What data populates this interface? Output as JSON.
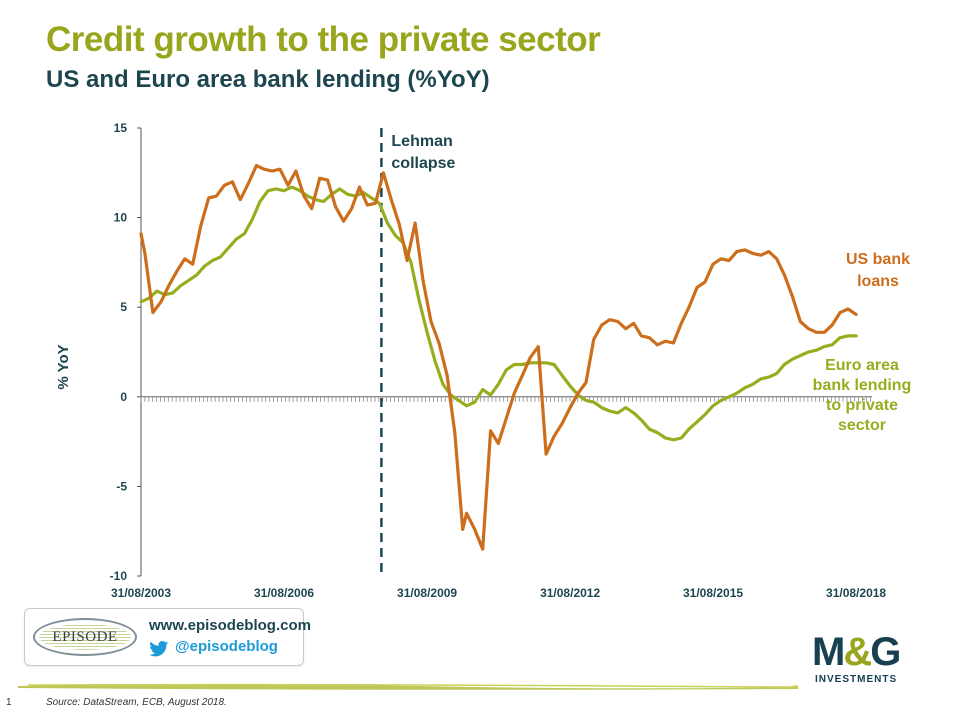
{
  "header": {
    "title": "Credit growth to the private sector",
    "subtitle": "US and Euro area bank lending (%YoY)"
  },
  "colors": {
    "title": "#9aa51e",
    "subtitle": "#1e4650",
    "us_series": "#cc6e1c",
    "euro_series": "#97ad1e",
    "lehman_line": "#174050"
  },
  "chart_data": {
    "type": "line",
    "title": "",
    "xlabel": "",
    "ylabel": "% YoY",
    "ylim": [
      -10,
      15
    ],
    "yticks": [
      -10,
      -5,
      0,
      5,
      10,
      15
    ],
    "x_range": [
      "2003-08-31",
      "2018-12-31"
    ],
    "xticks": [
      "31/08/2003",
      "31/08/2006",
      "31/08/2009",
      "31/08/2012",
      "31/08/2015",
      "31/08/2018"
    ],
    "grid": false,
    "legend": "inline labels",
    "annotations": [
      {
        "label": "Lehman collapse",
        "x": "2008-09-15",
        "style": "dashed vertical line"
      }
    ],
    "series": [
      {
        "name": "US bank loans",
        "label_text": [
          "US bank",
          "loans"
        ],
        "color": "#cc6e1c",
        "points": [
          [
            "2003-08-31",
            9.1
          ],
          [
            "2003-09-30",
            8.0
          ],
          [
            "2003-11-30",
            4.7
          ],
          [
            "2004-01-31",
            5.3
          ],
          [
            "2004-03-31",
            6.2
          ],
          [
            "2004-05-31",
            7.0
          ],
          [
            "2004-07-31",
            7.7
          ],
          [
            "2004-09-30",
            7.4
          ],
          [
            "2004-11-30",
            9.5
          ],
          [
            "2005-01-31",
            11.1
          ],
          [
            "2005-03-31",
            11.2
          ],
          [
            "2005-05-31",
            11.8
          ],
          [
            "2005-07-31",
            12.0
          ],
          [
            "2005-09-30",
            11.0
          ],
          [
            "2005-11-30",
            11.9
          ],
          [
            "2006-01-31",
            12.9
          ],
          [
            "2006-03-31",
            12.7
          ],
          [
            "2006-05-31",
            12.6
          ],
          [
            "2006-07-31",
            12.7
          ],
          [
            "2006-09-30",
            11.8
          ],
          [
            "2006-11-30",
            12.6
          ],
          [
            "2007-01-31",
            11.2
          ],
          [
            "2007-03-31",
            10.5
          ],
          [
            "2007-05-31",
            12.2
          ],
          [
            "2007-07-31",
            12.1
          ],
          [
            "2007-09-30",
            10.6
          ],
          [
            "2007-11-30",
            9.8
          ],
          [
            "2008-01-31",
            10.5
          ],
          [
            "2008-03-31",
            11.7
          ],
          [
            "2008-05-31",
            10.7
          ],
          [
            "2008-07-31",
            10.8
          ],
          [
            "2008-09-30",
            12.5
          ],
          [
            "2008-11-30",
            11.0
          ],
          [
            "2009-01-31",
            9.6
          ],
          [
            "2009-03-31",
            7.6
          ],
          [
            "2009-05-31",
            9.7
          ],
          [
            "2009-07-31",
            6.5
          ],
          [
            "2009-09-30",
            4.2
          ],
          [
            "2009-11-30",
            3.0
          ],
          [
            "2010-01-31",
            1.2
          ],
          [
            "2010-03-31",
            -2.0
          ],
          [
            "2010-05-31",
            -7.4
          ],
          [
            "2010-06-30",
            -6.5
          ],
          [
            "2010-08-31",
            -7.4
          ],
          [
            "2010-10-31",
            -8.5
          ],
          [
            "2010-12-31",
            -1.9
          ],
          [
            "2011-02-28",
            -2.6
          ],
          [
            "2011-04-30",
            -1.2
          ],
          [
            "2011-06-30",
            0.2
          ],
          [
            "2011-08-31",
            1.2
          ],
          [
            "2011-10-31",
            2.2
          ],
          [
            "2011-12-31",
            2.8
          ],
          [
            "2012-02-29",
            -3.2
          ],
          [
            "2012-04-30",
            -2.2
          ],
          [
            "2012-06-30",
            -1.5
          ],
          [
            "2012-08-31",
            -0.6
          ],
          [
            "2012-10-31",
            0.2
          ],
          [
            "2012-12-31",
            0.8
          ],
          [
            "2013-02-28",
            3.2
          ],
          [
            "2013-04-30",
            4.0
          ],
          [
            "2013-06-30",
            4.3
          ],
          [
            "2013-08-31",
            4.2
          ],
          [
            "2013-10-31",
            3.8
          ],
          [
            "2013-12-31",
            4.1
          ],
          [
            "2014-02-28",
            3.4
          ],
          [
            "2014-04-30",
            3.3
          ],
          [
            "2014-06-30",
            2.9
          ],
          [
            "2014-08-31",
            3.1
          ],
          [
            "2014-10-31",
            3.0
          ],
          [
            "2014-12-31",
            4.1
          ],
          [
            "2015-02-28",
            5.0
          ],
          [
            "2015-04-30",
            6.1
          ],
          [
            "2015-06-30",
            6.4
          ],
          [
            "2015-08-31",
            7.4
          ],
          [
            "2015-10-31",
            7.7
          ],
          [
            "2015-12-31",
            7.6
          ],
          [
            "2016-02-29",
            8.1
          ],
          [
            "2016-04-30",
            8.2
          ],
          [
            "2016-06-30",
            8.0
          ],
          [
            "2016-08-31",
            7.9
          ],
          [
            "2016-10-31",
            8.1
          ],
          [
            "2016-12-31",
            7.7
          ],
          [
            "2017-02-28",
            6.8
          ],
          [
            "2017-04-30",
            5.6
          ],
          [
            "2017-06-30",
            4.2
          ],
          [
            "2017-08-31",
            3.8
          ],
          [
            "2017-10-31",
            3.6
          ],
          [
            "2017-12-31",
            3.6
          ],
          [
            "2018-02-28",
            4.0
          ],
          [
            "2018-04-30",
            4.7
          ],
          [
            "2018-06-30",
            4.9
          ],
          [
            "2018-08-31",
            4.6
          ]
        ]
      },
      {
        "name": "Euro area bank lending to private sector",
        "label_text": [
          "Euro area",
          "bank lending",
          "to private",
          "sector"
        ],
        "color": "#97ad1e",
        "points": [
          [
            "2003-08-31",
            5.3
          ],
          [
            "2003-10-31",
            5.5
          ],
          [
            "2003-12-31",
            5.9
          ],
          [
            "2004-02-29",
            5.7
          ],
          [
            "2004-04-30",
            5.8
          ],
          [
            "2004-06-30",
            6.2
          ],
          [
            "2004-08-31",
            6.5
          ],
          [
            "2004-10-31",
            6.8
          ],
          [
            "2004-12-31",
            7.3
          ],
          [
            "2005-02-28",
            7.6
          ],
          [
            "2005-04-30",
            7.8
          ],
          [
            "2005-06-30",
            8.3
          ],
          [
            "2005-08-31",
            8.8
          ],
          [
            "2005-10-31",
            9.1
          ],
          [
            "2005-12-31",
            9.9
          ],
          [
            "2006-02-28",
            10.9
          ],
          [
            "2006-04-30",
            11.5
          ],
          [
            "2006-06-30",
            11.6
          ],
          [
            "2006-08-31",
            11.5
          ],
          [
            "2006-10-31",
            11.7
          ],
          [
            "2006-12-31",
            11.5
          ],
          [
            "2007-02-28",
            11.2
          ],
          [
            "2007-04-30",
            11.0
          ],
          [
            "2007-06-30",
            10.9
          ],
          [
            "2007-08-31",
            11.3
          ],
          [
            "2007-10-31",
            11.6
          ],
          [
            "2007-12-31",
            11.3
          ],
          [
            "2008-02-29",
            11.2
          ],
          [
            "2008-04-30",
            11.4
          ],
          [
            "2008-06-30",
            11.1
          ],
          [
            "2008-08-31",
            10.8
          ],
          [
            "2008-10-31",
            9.7
          ],
          [
            "2008-12-31",
            9.0
          ],
          [
            "2009-02-28",
            8.6
          ],
          [
            "2009-04-30",
            7.5
          ],
          [
            "2009-06-30",
            5.4
          ],
          [
            "2009-08-31",
            3.6
          ],
          [
            "2009-10-31",
            2.0
          ],
          [
            "2009-12-31",
            0.7
          ],
          [
            "2010-02-28",
            0.1
          ],
          [
            "2010-04-30",
            -0.2
          ],
          [
            "2010-06-30",
            -0.5
          ],
          [
            "2010-08-31",
            -0.3
          ],
          [
            "2010-10-31",
            0.4
          ],
          [
            "2010-12-31",
            0.1
          ],
          [
            "2011-02-28",
            0.7
          ],
          [
            "2011-04-30",
            1.5
          ],
          [
            "2011-06-30",
            1.8
          ],
          [
            "2011-08-31",
            1.8
          ],
          [
            "2011-10-31",
            1.9
          ],
          [
            "2011-12-31",
            1.9
          ],
          [
            "2012-02-29",
            1.9
          ],
          [
            "2012-04-30",
            1.8
          ],
          [
            "2012-06-30",
            1.2
          ],
          [
            "2012-08-31",
            0.6
          ],
          [
            "2012-10-31",
            0.1
          ],
          [
            "2012-12-31",
            -0.2
          ],
          [
            "2013-02-28",
            -0.3
          ],
          [
            "2013-04-30",
            -0.6
          ],
          [
            "2013-06-30",
            -0.8
          ],
          [
            "2013-08-31",
            -0.9
          ],
          [
            "2013-10-31",
            -0.6
          ],
          [
            "2013-12-31",
            -0.9
          ],
          [
            "2014-02-28",
            -1.3
          ],
          [
            "2014-04-30",
            -1.8
          ],
          [
            "2014-06-30",
            -2.0
          ],
          [
            "2014-08-31",
            -2.3
          ],
          [
            "2014-10-31",
            -2.4
          ],
          [
            "2014-12-31",
            -2.3
          ],
          [
            "2015-02-28",
            -1.8
          ],
          [
            "2015-04-30",
            -1.4
          ],
          [
            "2015-06-30",
            -1.0
          ],
          [
            "2015-08-31",
            -0.5
          ],
          [
            "2015-10-31",
            -0.2
          ],
          [
            "2015-12-31",
            0.0
          ],
          [
            "2016-02-29",
            0.2
          ],
          [
            "2016-04-30",
            0.5
          ],
          [
            "2016-06-30",
            0.7
          ],
          [
            "2016-08-31",
            1.0
          ],
          [
            "2016-10-31",
            1.1
          ],
          [
            "2016-12-31",
            1.3
          ],
          [
            "2017-02-28",
            1.8
          ],
          [
            "2017-04-30",
            2.1
          ],
          [
            "2017-06-30",
            2.3
          ],
          [
            "2017-08-31",
            2.5
          ],
          [
            "2017-10-31",
            2.6
          ],
          [
            "2017-12-31",
            2.8
          ],
          [
            "2018-02-28",
            2.9
          ],
          [
            "2018-04-30",
            3.3
          ],
          [
            "2018-06-30",
            3.4
          ],
          [
            "2018-08-31",
            3.4
          ]
        ]
      }
    ]
  },
  "branding": {
    "website": "www.episodeblog.com",
    "twitter": "@episodeblog",
    "episode_logo_text": "EPISODE",
    "mg_logo_text": "M&G",
    "mg_logo_letters": [
      "M",
      "&",
      "G"
    ],
    "mg_logo_sub": "INVESTMENTS",
    "twitter_icon": "twitter-bird-icon"
  },
  "footer": {
    "page_number": "1",
    "source": "Source: DataStream, ECB, August 2018."
  }
}
